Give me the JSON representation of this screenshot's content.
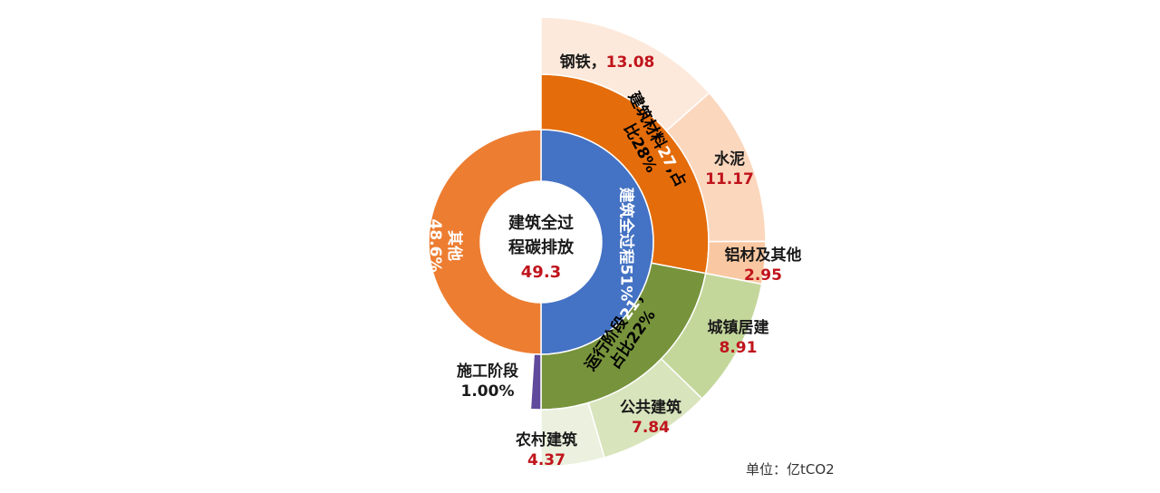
{
  "chart_data": {
    "type": "sunburst",
    "unit_label": "单位：亿tCO2",
    "center": {
      "line1": "建筑全过",
      "line2": "程碳排放",
      "value": "49.3"
    },
    "inner_ring": [
      {
        "name": "建筑全过程",
        "label": "建筑全过程51%",
        "percent": 51,
        "color": "#4472C4"
      },
      {
        "name": "其他",
        "label_name": "其他",
        "label_pct": "48.6%",
        "percent": 48.6,
        "color": "#ED7D31"
      }
    ],
    "middle_ring": [
      {
        "name": "建筑材料",
        "label_a": "建筑材料",
        "label_num": "27",
        "label_b": ",占",
        "label_line2": "比28%",
        "value": 27,
        "percent": 28,
        "color": "#E46C0A"
      },
      {
        "name": "运行阶段",
        "label_a": "运行阶段",
        "label_num": "21",
        "label_b": "，",
        "label_line2": "占比22%",
        "value": 21,
        "percent": 22,
        "color": "#77933C"
      },
      {
        "name": "施工阶段",
        "label_name": "施工阶段",
        "label_pct": "1.00%",
        "percent": 1,
        "color": "#604A9B"
      }
    ],
    "outer_ring": [
      {
        "name": "钢铁",
        "sep": "，",
        "value": 13.08,
        "value_text": "13.08",
        "parent": "建筑材料",
        "color": "#FDE9DB"
      },
      {
        "name": "水泥",
        "value": 11.17,
        "value_text": "11.17",
        "parent": "建筑材料",
        "color": "#FBD7BE"
      },
      {
        "name": "铝材及其他",
        "value": 2.95,
        "value_text": "2.95",
        "parent": "建筑材料",
        "color": "#F9C8A2"
      },
      {
        "name": "城镇居建",
        "value": 8.91,
        "value_text": "8.91",
        "parent": "运行阶段",
        "color": "#C4D79B"
      },
      {
        "name": "公共建筑",
        "value": 7.84,
        "value_text": "7.84",
        "parent": "运行阶段",
        "color": "#D8E4BC"
      },
      {
        "name": "农村建筑",
        "value": 4.37,
        "value_text": "4.37",
        "parent": "运行阶段",
        "color": "#EBF1DE"
      }
    ]
  }
}
